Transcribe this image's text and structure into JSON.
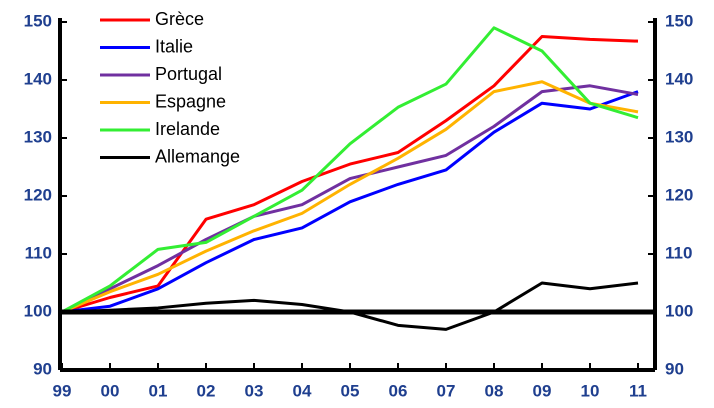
{
  "chart_data": {
    "type": "line",
    "categories": [
      "99",
      "00",
      "01",
      "02",
      "03",
      "04",
      "05",
      "06",
      "07",
      "08",
      "09",
      "10",
      "11"
    ],
    "series": [
      {
        "name": "Grèce",
        "color": "#ff0000",
        "values": [
          100,
          102.5,
          104.5,
          116,
          118.5,
          122.5,
          125.5,
          127.5,
          133,
          139,
          147.5,
          147,
          146.7
        ]
      },
      {
        "name": "Italie",
        "color": "#0000ff",
        "values": [
          100,
          101,
          104,
          108.5,
          112.5,
          114.5,
          119,
          122,
          124.5,
          131,
          136,
          135,
          138
        ]
      },
      {
        "name": "Portugal",
        "color": "#7030a0",
        "values": [
          100,
          104,
          108,
          112.5,
          116.5,
          118.5,
          123,
          125,
          127,
          132,
          138,
          139,
          137.5
        ]
      },
      {
        "name": "Espagne",
        "color": "#ffb300",
        "values": [
          100,
          103.5,
          106.5,
          110.5,
          114,
          117,
          122,
          126.5,
          131.5,
          138,
          139.7,
          136,
          134.5
        ]
      },
      {
        "name": "Irelande",
        "color": "#33ee33",
        "values": [
          100,
          104.5,
          110.8,
          112,
          116.5,
          121,
          129,
          135.3,
          139.3,
          149,
          145,
          136,
          133.5
        ]
      },
      {
        "name": "Allemange",
        "color": "#000000",
        "values": [
          100,
          100.3,
          100.7,
          101.5,
          102,
          101.3,
          100,
          97.7,
          97,
          100,
          105,
          104,
          105
        ]
      }
    ],
    "ylim": [
      90,
      150
    ],
    "yticks": [
      90,
      100,
      110,
      120,
      130,
      140,
      150
    ],
    "y2lim": [
      90,
      150
    ],
    "y2ticks": [
      90,
      100,
      110,
      120,
      130,
      140,
      150
    ],
    "reference_line": 100,
    "legend": "upper left"
  }
}
